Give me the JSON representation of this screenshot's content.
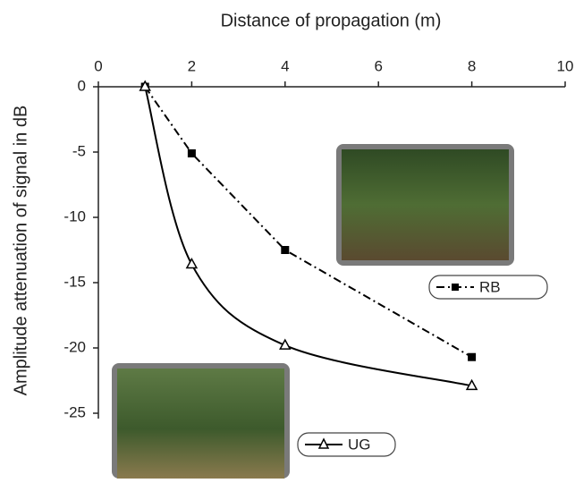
{
  "chart_data": {
    "type": "line",
    "xlabel": "Distance of propagation (m)",
    "ylabel": "Amplitude attenuation of signal  in dB",
    "x": [
      1,
      2,
      4,
      8
    ],
    "series": [
      {
        "name": "RB",
        "color": "#000000",
        "style": "dash-dot",
        "marker": "square",
        "values": [
          0,
          -5.1,
          -12.5,
          -20.7
        ]
      },
      {
        "name": "UG",
        "color": "#000000",
        "style": "solid",
        "marker": "triangle",
        "values": [
          0,
          -13.6,
          -19.8,
          -22.9
        ]
      }
    ],
    "xlim": [
      0,
      10
    ],
    "xticks": [
      0,
      2,
      4,
      6,
      8,
      10
    ],
    "ylim": [
      0,
      -25
    ],
    "yticks": [
      0,
      -5,
      -10,
      -15,
      -20,
      -25
    ]
  }
}
